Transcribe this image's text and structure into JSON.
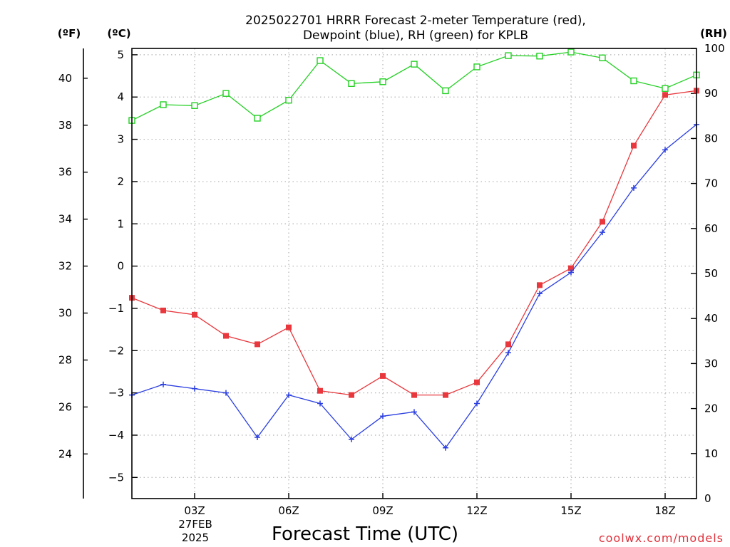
{
  "title": {
    "line1": "2025022701 HRRR Forecast 2-meter Temperature (red),",
    "line2": "Dewpoint (blue), RH (green) for KPLB"
  },
  "axis_units": {
    "fahrenheit": "(ºF)",
    "celsius": "(ºC)",
    "rh": "(RH)"
  },
  "xaxis": {
    "title": "Forecast Time (UTC)",
    "date_label_line1": "27FEB",
    "date_label_line2": "2025"
  },
  "credit": "coolwx.com/models",
  "colors": {
    "temperature": "#e8383d",
    "dewpoint": "#2b3fe0",
    "rh": "#22d022"
  },
  "chart_data": {
    "type": "line",
    "title": "2025022701 HRRR Forecast 2-meter Temperature (red), Dewpoint (blue), RH (green) for KPLB",
    "xlabel": "Forecast Time (UTC)",
    "x": [
      1,
      2,
      3,
      4,
      5,
      6,
      7,
      8,
      9,
      10,
      11,
      12,
      13,
      14,
      15,
      16,
      17,
      18,
      19
    ],
    "xticks": [
      {
        "x": 3,
        "label": "03Z"
      },
      {
        "x": 6,
        "label": "06Z"
      },
      {
        "x": 9,
        "label": "09Z"
      },
      {
        "x": 12,
        "label": "12Z"
      },
      {
        "x": 15,
        "label": "15Z"
      },
      {
        "x": 18,
        "label": "18Z"
      }
    ],
    "xlim": [
      1,
      19
    ],
    "left_axis_celsius": {
      "ylim": [
        -5.5,
        5.15
      ],
      "ticks": [
        -5,
        -4,
        -3,
        -2,
        -1,
        0,
        1,
        2,
        3,
        4,
        5
      ]
    },
    "left_axis_fahrenheit": {
      "ticks": [
        24,
        26,
        28,
        30,
        32,
        34,
        36,
        38,
        40
      ]
    },
    "right_axis_rh": {
      "ylim": [
        0,
        100
      ],
      "ticks": [
        0,
        10,
        20,
        30,
        40,
        50,
        60,
        70,
        80,
        90,
        100
      ]
    },
    "series": [
      {
        "axis": "celsius",
        "marker": "filled-square",
        "values": [
          -0.75,
          -1.05,
          -1.15,
          -1.65,
          -1.85,
          -1.45,
          -2.95,
          -3.05,
          -2.6,
          -3.05,
          -3.05,
          -2.75,
          -1.85,
          -0.45,
          -0.05,
          1.05,
          2.85,
          4.05,
          4.15
        ]
      },
      {
        "axis": "celsius",
        "marker": "plus",
        "values": [
          -3.05,
          -2.8,
          -2.9,
          -3.0,
          -4.05,
          -3.05,
          -3.25,
          -4.1,
          -3.55,
          -3.45,
          -4.3,
          -3.25,
          -2.05,
          -0.65,
          -0.15,
          0.8,
          1.85,
          2.75,
          3.35
        ]
      },
      {
        "axis": "rh",
        "marker": "open-square",
        "values": [
          84,
          87.5,
          87.3,
          90,
          84.5,
          88.5,
          97.3,
          92.2,
          92.6,
          96.5,
          90.6,
          95.9,
          98.4,
          98.3,
          99.2,
          97.9,
          92.8,
          91.1,
          94.1
        ]
      }
    ],
    "grid": true
  }
}
